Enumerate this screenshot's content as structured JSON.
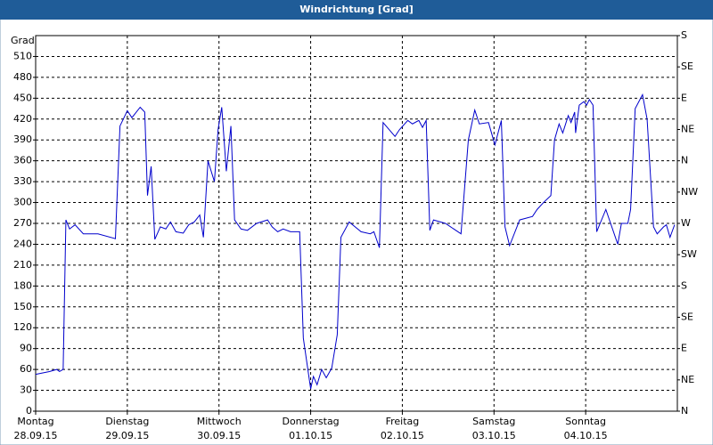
{
  "chart_data": {
    "type": "line",
    "title": "Windrichtung [Grad]",
    "y_label": "Grad",
    "xlim": [
      0,
      7
    ],
    "xticks": [
      {
        "value": 0,
        "label": "Montag",
        "date": "28.09.15"
      },
      {
        "value": 1,
        "label": "Dienstag",
        "date": "29.09.15"
      },
      {
        "value": 2,
        "label": "Mittwoch",
        "date": "30.09.15"
      },
      {
        "value": 3,
        "label": "Donnerstag",
        "date": "01.10.15"
      },
      {
        "value": 4,
        "label": "Freitag",
        "date": "02.10.15"
      },
      {
        "value": 5,
        "label": "Samstag",
        "date": "03.10.15"
      },
      {
        "value": 6,
        "label": "Sonntag",
        "date": "04.10.15"
      }
    ],
    "ylim": [
      0,
      540
    ],
    "yticks": [
      0,
      30,
      60,
      90,
      120,
      150,
      180,
      210,
      240,
      270,
      300,
      330,
      360,
      390,
      420,
      450,
      480,
      510
    ],
    "y2lim": [
      0,
      540
    ],
    "y2ticks": [
      {
        "value": 0,
        "label": "N"
      },
      {
        "value": 45,
        "label": "NE"
      },
      {
        "value": 90,
        "label": "E"
      },
      {
        "value": 135,
        "label": "SE"
      },
      {
        "value": 180,
        "label": "S"
      },
      {
        "value": 225,
        "label": "SW"
      },
      {
        "value": 270,
        "label": "W"
      },
      {
        "value": 315,
        "label": "NW"
      },
      {
        "value": 360,
        "label": "N"
      },
      {
        "value": 405,
        "label": "NE"
      },
      {
        "value": 450,
        "label": "E"
      },
      {
        "value": 495,
        "label": "SE"
      },
      {
        "value": 540,
        "label": "S"
      }
    ],
    "grid": true,
    "color": "#0000cc",
    "x": [
      0,
      0.15,
      0.23,
      0.26,
      0.3,
      0.33,
      0.37,
      0.43,
      0.52,
      0.68,
      0.87,
      0.92,
      1.0,
      1.05,
      1.14,
      1.19,
      1.22,
      1.26,
      1.3,
      1.36,
      1.42,
      1.47,
      1.53,
      1.61,
      1.67,
      1.73,
      1.79,
      1.83,
      1.88,
      1.95,
      1.99,
      2.03,
      2.08,
      2.13,
      2.17,
      2.24,
      2.31,
      2.41,
      2.53,
      2.58,
      2.64,
      2.7,
      2.78,
      2.86,
      2.88,
      2.92,
      3.0,
      3.03,
      3.07,
      3.12,
      3.17,
      3.23,
      3.29,
      3.33,
      3.42,
      3.55,
      3.65,
      3.69,
      3.75,
      3.79,
      3.92,
      3.97,
      4.06,
      4.11,
      4.18,
      4.22,
      4.26,
      4.3,
      4.34,
      4.47,
      4.64,
      4.72,
      4.79,
      4.84,
      4.94,
      5.01,
      5.08,
      5.12,
      5.17,
      5.28,
      5.42,
      5.47,
      5.54,
      5.62,
      5.66,
      5.71,
      5.75,
      5.81,
      5.84,
      5.88,
      5.89,
      5.93,
      5.98,
      6.01,
      6.04,
      6.08,
      6.12,
      6.22,
      6.35,
      6.39,
      6.46,
      6.49,
      6.54,
      6.62,
      6.67,
      6.74,
      6.78,
      6.85,
      6.88,
      6.92,
      6.97
    ],
    "values": [
      53,
      57,
      60,
      57,
      60,
      275,
      262,
      268,
      255,
      255,
      248,
      410,
      432,
      422,
      437,
      430,
      310,
      352,
      247,
      265,
      262,
      272,
      258,
      256,
      268,
      272,
      282,
      250,
      360,
      330,
      405,
      437,
      345,
      410,
      275,
      262,
      260,
      270,
      275,
      265,
      258,
      262,
      258,
      258,
      258,
      105,
      32,
      50,
      38,
      60,
      48,
      62,
      110,
      250,
      272,
      258,
      255,
      258,
      235,
      415,
      395,
      405,
      418,
      413,
      418,
      408,
      418,
      260,
      275,
      270,
      255,
      390,
      433,
      413,
      415,
      383,
      418,
      265,
      238,
      275,
      280,
      290,
      300,
      310,
      390,
      413,
      400,
      425,
      415,
      430,
      400,
      440,
      445,
      440,
      448,
      440,
      258,
      290,
      240,
      270,
      270,
      290,
      435,
      455,
      420,
      265,
      255,
      265,
      268,
      250,
      268
    ]
  }
}
